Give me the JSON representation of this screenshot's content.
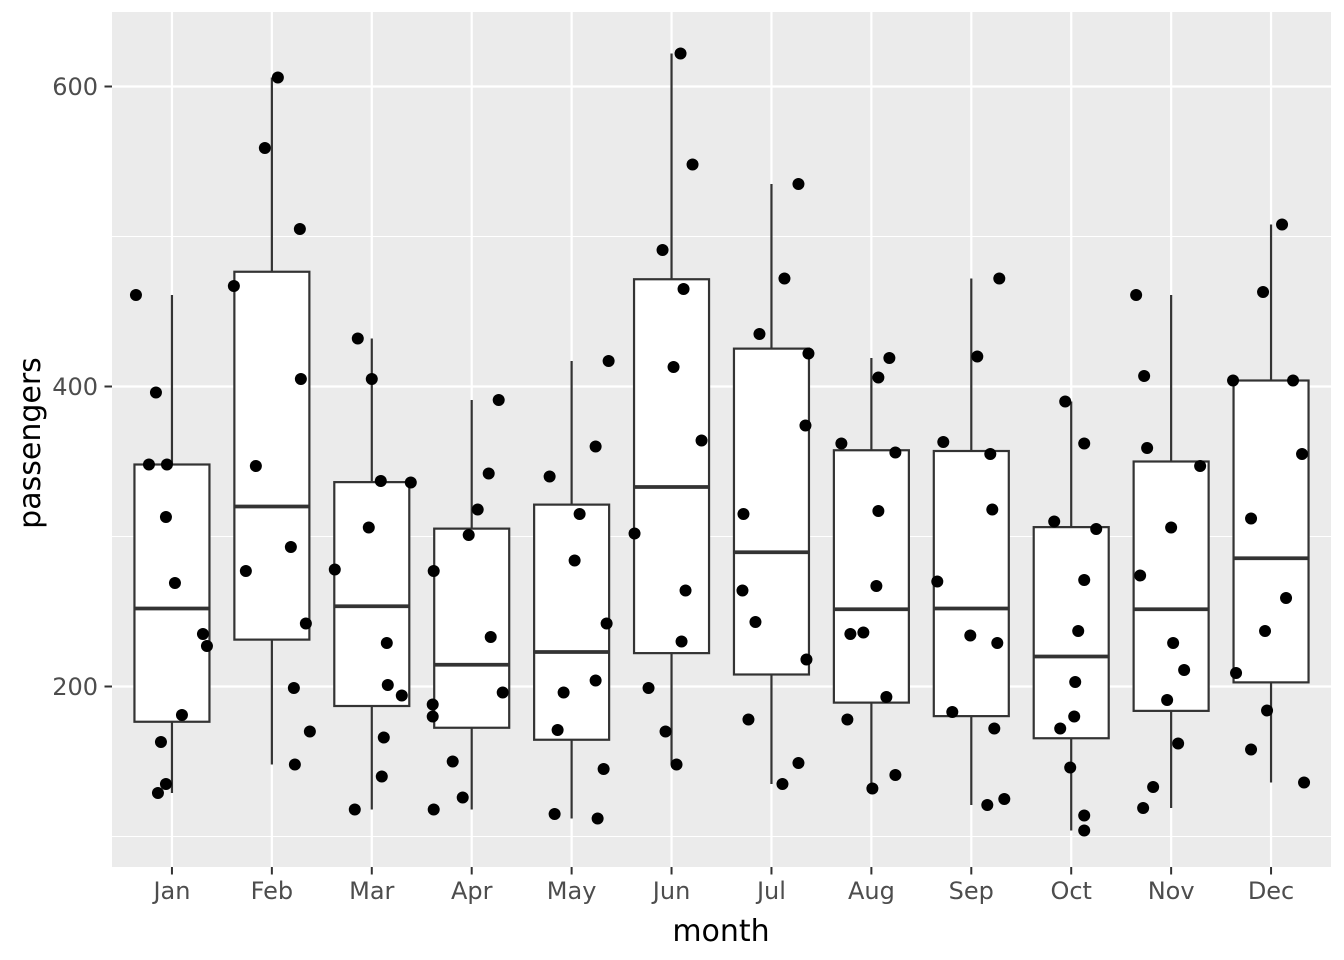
{
  "chart_data": {
    "type": "boxplot",
    "title": "",
    "xlabel": "month",
    "ylabel": "passengers",
    "legend": "none",
    "grid": "on",
    "panel_background": "#EBEBEB",
    "grid_color": "#FFFFFF",
    "box_fill": "#FFFFFF",
    "box_stroke": "#333333",
    "point_color": "#000000",
    "tick_label_color": "#4D4D4D",
    "axis_title_color": "#000000",
    "categories": [
      "Jan",
      "Feb",
      "Mar",
      "Apr",
      "May",
      "Jun",
      "Jul",
      "Aug",
      "Sep",
      "Oct",
      "Nov",
      "Dec"
    ],
    "yticks_major": [
      200,
      400,
      600
    ],
    "yticks_minor": [
      100,
      300,
      500
    ],
    "ylim": [
      78,
      650
    ],
    "point_format": [
      "value",
      "x_jitter_px"
    ],
    "series": [
      {
        "label": "Jan",
        "box": {
          "lo": 129,
          "q1": 176.5,
          "med": 252,
          "q3": 348,
          "hi": 461
        },
        "points": [
          [
            461,
            -36
          ],
          [
            396,
            -16
          ],
          [
            348,
            -23
          ],
          [
            348,
            -5
          ],
          [
            313,
            -6
          ],
          [
            269,
            3
          ],
          [
            235,
            31
          ],
          [
            227,
            35
          ],
          [
            181,
            10
          ],
          [
            163,
            -11
          ],
          [
            135,
            -6
          ],
          [
            129,
            -14
          ]
        ]
      },
      {
        "label": "Feb",
        "box": {
          "lo": 148,
          "q1": 231.25,
          "med": 320,
          "q3": 476.5,
          "hi": 606
        },
        "points": [
          [
            606,
            6
          ],
          [
            559,
            -7
          ],
          [
            505,
            28
          ],
          [
            467,
            -38
          ],
          [
            405,
            29
          ],
          [
            347,
            -16
          ],
          [
            293,
            19
          ],
          [
            277,
            -26
          ],
          [
            242,
            34
          ],
          [
            199,
            22
          ],
          [
            170,
            38
          ],
          [
            148,
            23
          ]
        ]
      },
      {
        "label": "Mar",
        "box": {
          "lo": 118,
          "q1": 187,
          "med": 253.5,
          "q3": 336.25,
          "hi": 432
        },
        "points": [
          [
            432,
            -14
          ],
          [
            405,
            0
          ],
          [
            337,
            9
          ],
          [
            336,
            39
          ],
          [
            306,
            -3
          ],
          [
            278,
            -37
          ],
          [
            229,
            15
          ],
          [
            201,
            16
          ],
          [
            194,
            30
          ],
          [
            166,
            12
          ],
          [
            140,
            10
          ],
          [
            118,
            -17
          ]
        ]
      },
      {
        "label": "Apr",
        "box": {
          "lo": 118,
          "q1": 172.5,
          "med": 214.5,
          "q3": 305.25,
          "hi": 391
        },
        "points": [
          [
            391,
            27
          ],
          [
            342,
            17
          ],
          [
            318,
            6
          ],
          [
            301,
            -3
          ],
          [
            277,
            -38
          ],
          [
            233,
            19
          ],
          [
            196,
            31
          ],
          [
            188,
            -39
          ],
          [
            180,
            -39
          ],
          [
            150,
            -19
          ],
          [
            126,
            -9
          ],
          [
            118,
            -38
          ]
        ]
      },
      {
        "label": "May",
        "box": {
          "lo": 112,
          "q1": 164.5,
          "med": 223,
          "q3": 321.25,
          "hi": 417
        },
        "points": [
          [
            417,
            37
          ],
          [
            360,
            24
          ],
          [
            340,
            -22
          ],
          [
            315,
            8
          ],
          [
            284,
            3
          ],
          [
            242,
            35
          ],
          [
            204,
            24
          ],
          [
            196,
            -8
          ],
          [
            171,
            -14
          ],
          [
            145,
            32
          ],
          [
            115,
            -17
          ],
          [
            112,
            26
          ]
        ]
      },
      {
        "label": "Jun",
        "box": {
          "lo": 148,
          "q1": 222.25,
          "med": 333,
          "q3": 471.5,
          "hi": 622
        },
        "points": [
          [
            622,
            9
          ],
          [
            548,
            21
          ],
          [
            491,
            -9
          ],
          [
            465,
            12
          ],
          [
            413,
            2
          ],
          [
            364,
            30
          ],
          [
            302,
            -37
          ],
          [
            264,
            14
          ],
          [
            230,
            10
          ],
          [
            199,
            -23
          ],
          [
            170,
            -6
          ],
          [
            148,
            5
          ]
        ]
      },
      {
        "label": "Jul",
        "box": {
          "lo": 135,
          "q1": 208,
          "med": 289.5,
          "q3": 425.25,
          "hi": 535
        },
        "points": [
          [
            535,
            27
          ],
          [
            472,
            13
          ],
          [
            435,
            -12
          ],
          [
            422,
            37
          ],
          [
            374,
            34
          ],
          [
            315,
            -28
          ],
          [
            264,
            -29
          ],
          [
            243,
            -16
          ],
          [
            218,
            35
          ],
          [
            178,
            -23
          ],
          [
            149,
            27
          ],
          [
            135,
            11
          ]
        ]
      },
      {
        "label": "Aug",
        "box": {
          "lo": 132,
          "q1": 189.25,
          "med": 251.5,
          "q3": 357.5,
          "hi": 419
        },
        "points": [
          [
            419,
            18
          ],
          [
            406,
            7
          ],
          [
            362,
            -30
          ],
          [
            356,
            24
          ],
          [
            317,
            7
          ],
          [
            267,
            5
          ],
          [
            236,
            -8
          ],
          [
            235,
            -21
          ],
          [
            193,
            15
          ],
          [
            178,
            -24
          ],
          [
            141,
            24
          ],
          [
            132,
            1
          ]
        ]
      },
      {
        "label": "Sep",
        "box": {
          "lo": 121,
          "q1": 180.25,
          "med": 252,
          "q3": 357,
          "hi": 472
        },
        "points": [
          [
            472,
            28
          ],
          [
            420,
            6
          ],
          [
            363,
            -28
          ],
          [
            355,
            19
          ],
          [
            318,
            21
          ],
          [
            270,
            -34
          ],
          [
            234,
            -1
          ],
          [
            229,
            26
          ],
          [
            183,
            -19
          ],
          [
            172,
            23
          ],
          [
            125,
            33
          ],
          [
            121,
            16
          ]
        ]
      },
      {
        "label": "Oct",
        "box": {
          "lo": 104,
          "q1": 165.5,
          "med": 220,
          "q3": 306.25,
          "hi": 390
        },
        "points": [
          [
            390,
            -6
          ],
          [
            362,
            13
          ],
          [
            310,
            -17
          ],
          [
            305,
            25
          ],
          [
            271,
            13
          ],
          [
            237,
            7
          ],
          [
            203,
            4
          ],
          [
            180,
            3
          ],
          [
            172,
            -11
          ],
          [
            146,
            -1
          ],
          [
            114,
            13
          ],
          [
            104,
            13
          ]
        ]
      },
      {
        "label": "Nov",
        "box": {
          "lo": 119,
          "q1": 183.75,
          "med": 251.5,
          "q3": 350,
          "hi": 461
        },
        "points": [
          [
            461,
            -35
          ],
          [
            407,
            -27
          ],
          [
            359,
            -24
          ],
          [
            347,
            29
          ],
          [
            306,
            0
          ],
          [
            274,
            -31
          ],
          [
            229,
            2
          ],
          [
            211,
            13
          ],
          [
            191,
            -4
          ],
          [
            162,
            7
          ],
          [
            133,
            -18
          ],
          [
            119,
            -28
          ]
        ]
      },
      {
        "label": "Dec",
        "box": {
          "lo": 136,
          "q1": 202.75,
          "med": 285.5,
          "q3": 404,
          "hi": 508
        },
        "points": [
          [
            508,
            11
          ],
          [
            463,
            -8
          ],
          [
            404,
            -38
          ],
          [
            404,
            22
          ],
          [
            355,
            31
          ],
          [
            312,
            -20
          ],
          [
            259,
            15
          ],
          [
            237,
            -6
          ],
          [
            209,
            -35
          ],
          [
            184,
            -4
          ],
          [
            158,
            -20
          ],
          [
            136,
            33
          ]
        ]
      }
    ]
  }
}
